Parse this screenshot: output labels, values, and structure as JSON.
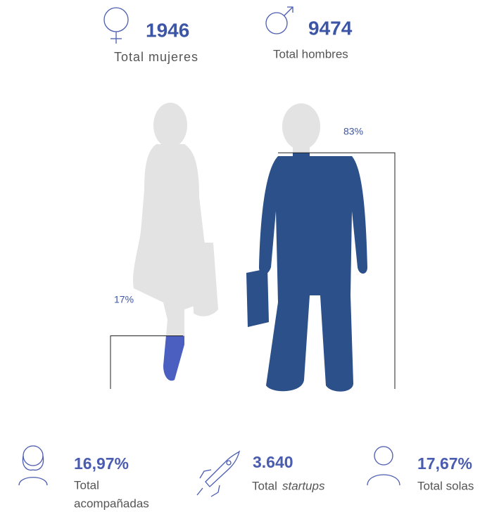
{
  "header": {
    "items": [
      {
        "value": "1946",
        "label": "Total mujeres"
      },
      {
        "value": "9474",
        "label": "Total hombres"
      }
    ]
  },
  "chart_data": {
    "type": "pictorial",
    "categories": [
      null,
      null
    ],
    "values": [
      17,
      83
    ],
    "value_labels": [
      "17%",
      "83%"
    ],
    "colors": [
      "#4b5fc1",
      "#2c508a"
    ],
    "base_color": "#e3e3e3",
    "ylim": [
      0,
      100
    ]
  },
  "footer": {
    "items": [
      {
        "value": "16,97%",
        "label_line1": "Total",
        "label_line2": "acompañadas"
      },
      {
        "value": "3.640",
        "label": "Total",
        "label_em": "startups"
      },
      {
        "value": "17,67%",
        "label": "Total solas"
      }
    ]
  }
}
